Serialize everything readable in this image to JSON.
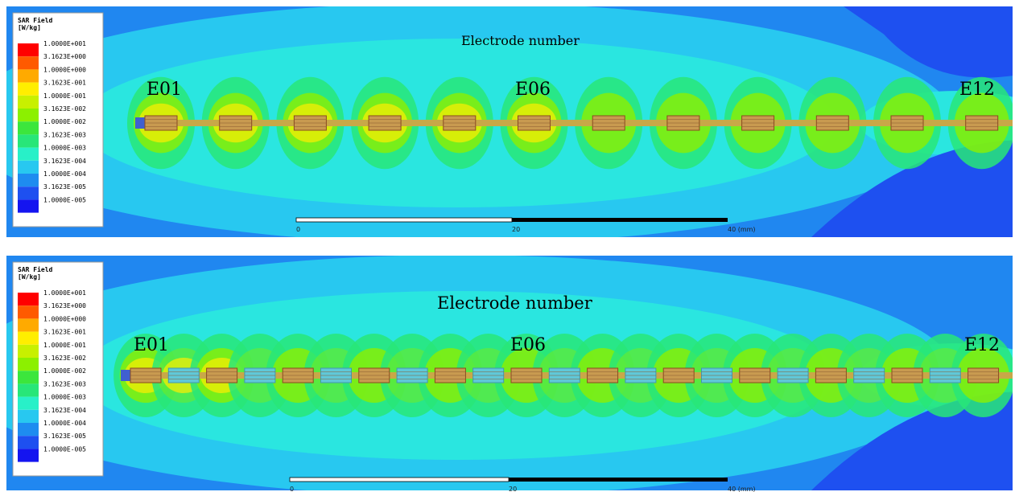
{
  "panels": [
    {
      "legend_title": [
        "SAR Field",
        "[W/kg]"
      ],
      "legend_labels": [
        "1.0000E+001",
        "3.1623E+000",
        "1.0000E+000",
        "3.1623E-001",
        "1.0000E-001",
        "3.1623E-002",
        "1.0000E-002",
        "3.1623E-003",
        "1.0000E-003",
        "3.1623E-004",
        "1.0000E-004",
        "3.1623E-005",
        "1.0000E-005"
      ],
      "annotation": "Electrode number",
      "electrode_labels": [
        "E01",
        "E06",
        "E12"
      ],
      "scale_labels": [
        "0",
        "20",
        "40 (mm)"
      ]
    },
    {
      "legend_title": [
        "SAR Field",
        "[W/kg]"
      ],
      "legend_labels": [
        "1.0000E+001",
        "3.1623E+000",
        "1.0000E+000",
        "3.1623E-001",
        "1.0000E-001",
        "3.1623E-002",
        "1.0000E-002",
        "3.1623E-003",
        "1.0000E-003",
        "3.1623E-004",
        "1.0000E-004",
        "3.1623E-005",
        "1.0000E-005"
      ],
      "annotation": "Electrode number",
      "electrode_labels": [
        "E01",
        "E06",
        "E12"
      ],
      "scale_labels": [
        "0",
        "20",
        "40 (mm)"
      ]
    }
  ],
  "legend_colors": [
    "#ff0000",
    "#ff5a00",
    "#ffaa00",
    "#ffee00",
    "#c8f000",
    "#8cf000",
    "#3ce63c",
    "#28e678",
    "#28f0c8",
    "#28c8f0",
    "#1e8cf0",
    "#1e50f0",
    "#1414f0"
  ]
}
